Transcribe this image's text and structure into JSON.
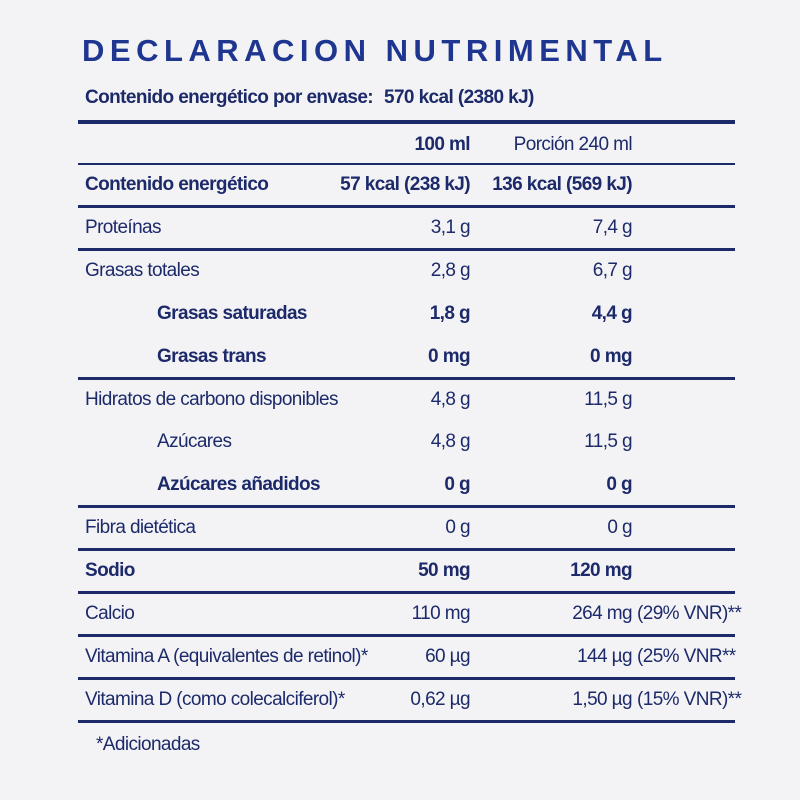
{
  "header": {
    "title": "DECLARACION NUTRIMENTAL",
    "energy_per_pack_label": "Contenido energético por envase:",
    "energy_per_pack_value": "570 kcal (2380 kJ)"
  },
  "table": {
    "columns": [
      "100 ml",
      "Porción 240 ml"
    ],
    "rows": [
      {
        "label": "Contenido energético",
        "per_100ml": "57 kcal (238 kJ)",
        "per_portion": "136 kcal (569 kJ)",
        "bold": true,
        "rule": true
      },
      {
        "label": "Proteínas",
        "per_100ml": "3,1 g",
        "per_portion": "7,4 g",
        "rule": true
      },
      {
        "label": "Grasas totales",
        "per_100ml": "2,8 g",
        "per_portion": "6,7 g"
      },
      {
        "label": "Grasas saturadas",
        "per_100ml": "1,8 g",
        "per_portion": "4,4 g",
        "bold": true,
        "indent": true
      },
      {
        "label": "Grasas trans",
        "per_100ml": "0 mg",
        "per_portion": "0 mg",
        "bold": true,
        "indent": true,
        "rule": true
      },
      {
        "label": "Hidratos de carbono disponibles",
        "per_100ml": "4,8 g",
        "per_portion": "11,5 g"
      },
      {
        "label": "Azúcares",
        "per_100ml": "4,8 g",
        "per_portion": "11,5 g",
        "indent": true
      },
      {
        "label": "Azúcares añadidos",
        "per_100ml": "0 g",
        "per_portion": "0 g",
        "bold": true,
        "indent": true,
        "rule": true
      },
      {
        "label": "Fibra dietética",
        "per_100ml": "0 g",
        "per_portion": "0 g",
        "rule": true
      },
      {
        "label": "Sodio",
        "per_100ml": "50 mg",
        "per_portion": "120 mg",
        "bold": true,
        "rule": true
      },
      {
        "label": "Calcio",
        "per_100ml": "110 mg",
        "per_portion": "264 mg",
        "vnr": "(29% VNR)**",
        "rule": true
      },
      {
        "label": "Vitamina A (equivalentes de retinol)*",
        "per_100ml": "60 µg",
        "per_portion": "144 µg",
        "vnr": "(25% VNR**",
        "rule": true
      },
      {
        "label": "Vitamina D (como colecalciferol)*",
        "per_100ml": "0,62 µg",
        "per_portion": "1,50 µg",
        "vnr": "(15% VNR)**",
        "rule": true
      }
    ]
  },
  "footer": {
    "note": "*Adicionadas"
  }
}
